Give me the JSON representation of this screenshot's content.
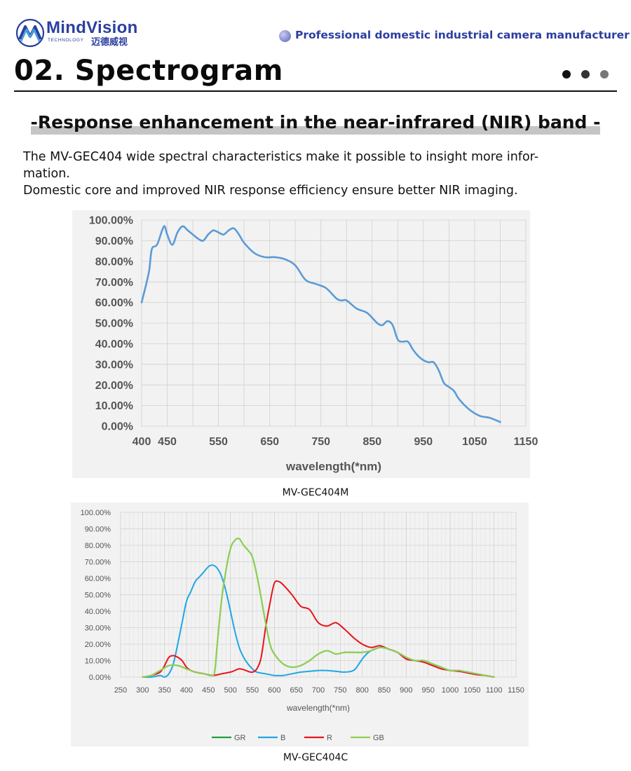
{
  "header": {
    "brand_name": "MindVision",
    "brand_sub": "TECHNOLOGY",
    "brand_cn": "迈德威视",
    "tagline": "Professional domestic industrial camera manufacturer"
  },
  "section": {
    "title": "02. Spectrogram",
    "subtitle": "-Response enhancement in the near-infrared (NIR) band -",
    "paragraph_1_line_1": "The MV-GEC404 wide spectral characteristics make it possible to insight more infor-",
    "paragraph_1_line_2": "mation.",
    "paragraph_2": "Domestic core and improved NIR response efficiency ensure better NIR imaging."
  },
  "colors": {
    "brand": "#2b3fa0",
    "mono_line": "#5b9bd5",
    "GR": "#22a040",
    "B": "#1ea7e4",
    "R": "#e8141b",
    "GB": "#8fd14f"
  },
  "chart_data": [
    {
      "type": "line",
      "caption": "MV-GEC404M",
      "xlabel": "wavelength(*nm)",
      "ylabel": "",
      "xlim": [
        400,
        1150
      ],
      "ylim": [
        0,
        100
      ],
      "x_ticks": [
        400,
        450,
        550,
        650,
        750,
        850,
        950,
        1050,
        1150
      ],
      "x_tick_labels": [
        "400",
        "450",
        "550",
        "650",
        "750",
        "850",
        "950",
        "1050",
        "1150"
      ],
      "y_ticks": [
        0,
        10,
        20,
        30,
        40,
        50,
        60,
        70,
        80,
        90,
        100
      ],
      "y_tick_labels": [
        "0.00%",
        "10.00%",
        "20.00%",
        "30.00%",
        "40.00%",
        "50.00%",
        "60.00%",
        "70.00%",
        "80.00%",
        "90.00%",
        "100.00%"
      ],
      "grid": true,
      "series": [
        {
          "color": "#5b9bd5",
          "x": [
            400,
            410,
            415,
            420,
            430,
            440,
            445,
            450,
            460,
            470,
            480,
            490,
            500,
            510,
            520,
            530,
            540,
            550,
            560,
            570,
            580,
            590,
            600,
            620,
            640,
            660,
            680,
            700,
            720,
            740,
            760,
            780,
            790,
            800,
            820,
            840,
            860,
            870,
            880,
            890,
            900,
            910,
            920,
            930,
            940,
            950,
            960,
            970,
            980,
            990,
            1000,
            1010,
            1020,
            1040,
            1060,
            1080,
            1100
          ],
          "y": [
            60,
            70,
            76,
            86,
            88,
            95,
            97,
            93,
            88,
            94,
            97,
            95,
            93,
            91,
            90,
            93,
            95,
            94,
            93,
            95,
            96,
            93,
            89,
            84,
            82,
            82,
            81,
            78,
            71,
            69,
            67,
            62,
            61,
            61,
            57,
            55,
            50,
            49,
            51,
            49,
            42,
            41,
            41,
            37,
            34,
            32,
            31,
            31,
            27,
            21,
            19,
            17,
            13,
            8,
            5,
            4,
            2
          ]
        }
      ]
    },
    {
      "type": "line",
      "caption": "MV-GEC404C",
      "xlabel": "wavelength(*nm)",
      "ylabel": "",
      "xlim": [
        250,
        1150
      ],
      "ylim": [
        0,
        100
      ],
      "x_ticks": [
        250,
        300,
        350,
        400,
        450,
        500,
        550,
        600,
        650,
        700,
        750,
        800,
        850,
        900,
        950,
        1000,
        1050,
        1100,
        1150
      ],
      "x_tick_labels": [
        "250",
        "300",
        "350",
        "400",
        "450",
        "500",
        "550",
        "600",
        "650",
        "700",
        "750",
        "800",
        "850",
        "900",
        "950",
        "1000",
        "1050",
        "1100",
        "1150"
      ],
      "y_ticks": [
        0,
        10,
        20,
        30,
        40,
        50,
        60,
        70,
        80,
        90,
        100
      ],
      "y_tick_labels": [
        "0.00%",
        "10.00%",
        "20.00%",
        "30.00%",
        "40.00%",
        "50.00%",
        "60.00%",
        "70.00%",
        "80.00%",
        "90.00%",
        "100.00%"
      ],
      "grid": true,
      "legend_position": "bottom",
      "series": [
        {
          "name": "GR",
          "color": "#22a040",
          "x": [
            300,
            320,
            340,
            360,
            380,
            400,
            420,
            440,
            460,
            465,
            470,
            480,
            490,
            500,
            510,
            520,
            530,
            540,
            550,
            560,
            570,
            580,
            590,
            600,
            620,
            640,
            660,
            680,
            700,
            720,
            740,
            760,
            780,
            800,
            820,
            840,
            860,
            880,
            900,
            920,
            940,
            960,
            980,
            1000,
            1020,
            1040,
            1060,
            1080,
            1100
          ],
          "y": [
            0,
            1,
            4,
            7,
            7,
            5,
            3,
            2,
            1,
            5,
            20,
            47,
            65,
            78,
            83,
            84,
            80,
            77,
            73,
            62,
            48,
            33,
            20,
            14,
            8,
            6,
            7,
            10,
            14,
            16,
            14,
            15,
            15,
            15,
            16,
            18,
            17,
            15,
            12,
            10,
            10,
            8,
            6,
            4,
            4,
            3,
            2,
            1,
            0
          ]
        },
        {
          "name": "B",
          "color": "#1ea7e4",
          "x": [
            300,
            320,
            340,
            350,
            360,
            370,
            380,
            390,
            400,
            410,
            420,
            430,
            440,
            450,
            460,
            470,
            480,
            490,
            500,
            510,
            520,
            530,
            540,
            550,
            560,
            580,
            600,
            620,
            640,
            660,
            680,
            700,
            720,
            740,
            760,
            780,
            790,
            800,
            810,
            820,
            840,
            860,
            880,
            900,
            920,
            940,
            960,
            980,
            1000,
            1020,
            1040,
            1060,
            1080,
            1100
          ],
          "y": [
            0,
            0,
            1,
            0,
            2,
            8,
            20,
            33,
            46,
            52,
            58,
            61,
            64,
            67,
            68,
            66,
            61,
            52,
            40,
            28,
            18,
            12,
            8,
            5,
            3,
            2,
            1,
            1,
            2,
            3,
            3.5,
            4,
            4,
            3.5,
            3,
            4,
            7,
            11,
            14,
            16,
            18,
            17,
            15,
            12,
            10,
            10,
            8,
            6,
            4,
            4,
            3,
            2,
            1,
            0
          ]
        },
        {
          "name": "R",
          "color": "#e8141b",
          "x": [
            300,
            320,
            340,
            350,
            360,
            370,
            380,
            390,
            400,
            410,
            420,
            440,
            460,
            480,
            500,
            510,
            520,
            530,
            540,
            550,
            560,
            570,
            580,
            590,
            600,
            610,
            620,
            640,
            660,
            680,
            700,
            720,
            740,
            760,
            780,
            800,
            820,
            840,
            860,
            880,
            900,
            920,
            940,
            960,
            980,
            1000,
            1020,
            1040,
            1060,
            1080,
            1100
          ],
          "y": [
            0,
            1,
            3,
            7,
            12,
            13,
            12,
            10,
            6,
            4,
            3,
            2,
            1,
            2,
            3,
            4,
            5,
            4.5,
            3.5,
            3,
            5,
            12,
            30,
            45,
            57,
            58,
            56,
            50,
            43,
            41,
            33,
            31,
            33,
            29,
            24,
            20,
            18,
            19,
            17,
            15,
            11,
            10,
            9,
            7,
            5,
            4,
            3.5,
            2.5,
            1.5,
            1,
            0
          ]
        },
        {
          "name": "GB",
          "color": "#8fd14f",
          "x": [
            300,
            320,
            340,
            360,
            380,
            400,
            420,
            440,
            460,
            465,
            470,
            480,
            490,
            500,
            510,
            520,
            530,
            540,
            550,
            560,
            570,
            580,
            590,
            600,
            620,
            640,
            660,
            680,
            700,
            720,
            740,
            760,
            780,
            800,
            820,
            840,
            860,
            880,
            900,
            920,
            940,
            960,
            980,
            1000,
            1020,
            1040,
            1060,
            1080,
            1100
          ],
          "y": [
            0,
            1,
            4,
            7,
            7,
            5,
            3,
            2,
            1,
            5,
            20,
            47,
            65,
            78,
            83,
            84,
            80,
            77,
            73,
            62,
            48,
            33,
            20,
            14,
            8,
            6,
            7,
            10,
            14,
            16,
            14,
            15,
            15,
            15,
            16,
            18,
            17,
            15,
            12,
            10,
            10,
            8,
            6,
            4,
            4,
            3,
            2,
            1,
            0
          ]
        }
      ]
    }
  ]
}
